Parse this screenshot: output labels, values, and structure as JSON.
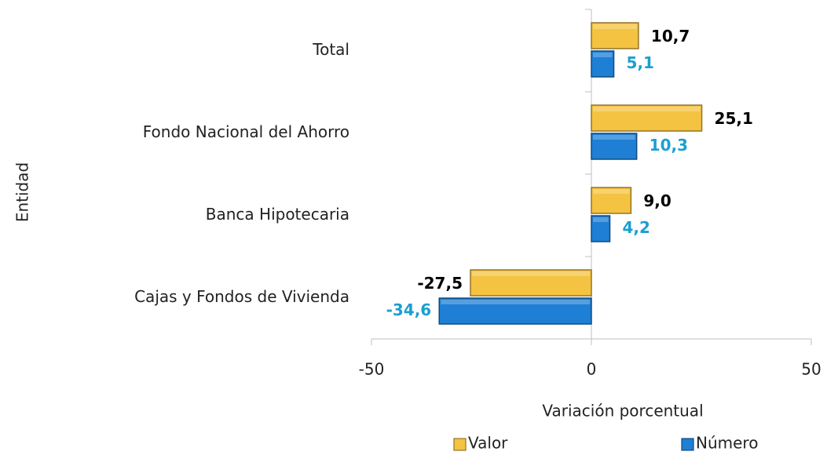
{
  "chart_data": {
    "type": "barh",
    "categories": [
      "Total",
      "Fondo Nacional del Ahorro",
      "Banca Hipotecaria",
      "Cajas y Fondos de Vivienda"
    ],
    "series": [
      {
        "name": "Valor",
        "color": "#f5c342",
        "values": [
          10.7,
          25.1,
          9.0,
          -27.5
        ],
        "value_labels": [
          "10,7",
          "25,1",
          "9,0",
          "-27,5"
        ],
        "label_color": "#000000"
      },
      {
        "name": "Número",
        "color": "#1e7fd4",
        "values": [
          5.1,
          10.3,
          4.2,
          -34.6
        ],
        "value_labels": [
          "5,1",
          "10,3",
          "4,2",
          "-34,6"
        ],
        "label_color": "#1a9fd0"
      }
    ],
    "xlim": [
      -50,
      50
    ],
    "xticks": [
      -50,
      0,
      50
    ],
    "xlabel": "Variación porcentual",
    "ylabel": "Entidad",
    "legend": "bottom"
  }
}
